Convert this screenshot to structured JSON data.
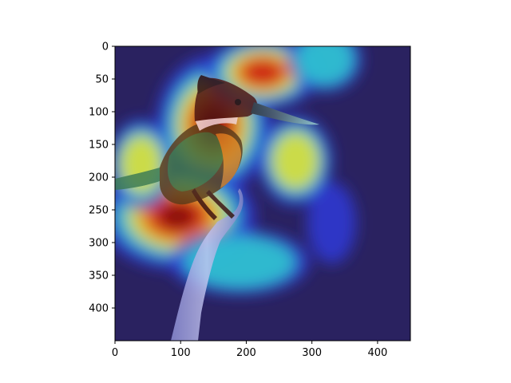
{
  "chart_data": {
    "type": "heatmap",
    "title": "",
    "xlabel": "",
    "ylabel": "",
    "xlim": [
      0,
      450
    ],
    "ylim": [
      450,
      0
    ],
    "x_ticks": [
      0,
      100,
      200,
      300,
      400
    ],
    "y_ticks": [
      0,
      50,
      100,
      150,
      200,
      250,
      300,
      350,
      400
    ],
    "grid": false,
    "colormap": "jet",
    "overlay": "kingfisher perched on a branch, Grad-CAM style activation map",
    "hotspots": [
      {
        "cx": 150,
        "cy": 120,
        "rx": 70,
        "ry": 85,
        "level": 1.0
      },
      {
        "cx": 95,
        "cy": 260,
        "rx": 95,
        "ry": 65,
        "level": 0.95
      },
      {
        "cx": 225,
        "cy": 40,
        "rx": 70,
        "ry": 45,
        "level": 0.8
      },
      {
        "cx": 275,
        "cy": 175,
        "rx": 45,
        "ry": 55,
        "level": 0.6
      },
      {
        "cx": 40,
        "cy": 180,
        "rx": 40,
        "ry": 55,
        "level": 0.55
      },
      {
        "cx": 190,
        "cy": 330,
        "rx": 85,
        "ry": 40,
        "level": 0.35
      },
      {
        "cx": 320,
        "cy": 20,
        "rx": 45,
        "ry": 40,
        "level": 0.35
      },
      {
        "cx": 330,
        "cy": 270,
        "rx": 30,
        "ry": 50,
        "level": 0.25
      }
    ],
    "colors": {
      "cold": "#2a2260",
      "blue": "#2f38d8",
      "cyan": "#2ed0d0",
      "yellow": "#e8e030",
      "orange": "#f07820",
      "red": "#c81818",
      "dark_red": "#7a0c0c",
      "axis": "#000000",
      "background": "#ffffff"
    }
  }
}
